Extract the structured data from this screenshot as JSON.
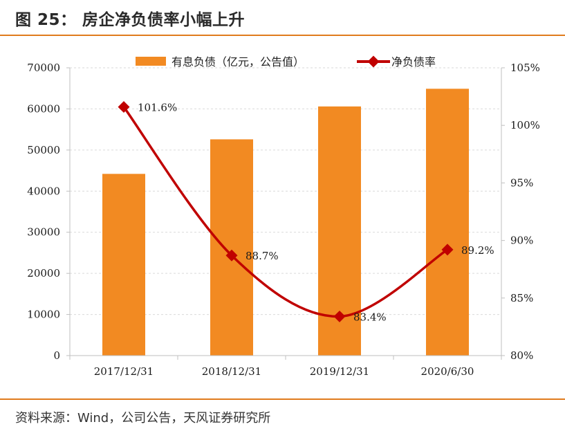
{
  "header": {
    "title": "图 25： 房企净负债率小幅上升"
  },
  "footer": {
    "source": "资料来源：Wind，公司公告，天风证券研究所"
  },
  "colors": {
    "bar": "#f28a22",
    "line": "#c00000",
    "accent_rule": "#e07b1c"
  },
  "chart_data": {
    "type": "bar",
    "categories": [
      "2017/12/31",
      "2018/12/31",
      "2019/12/31",
      "2020/6/30"
    ],
    "series": [
      {
        "name": "有息负债（亿元，公告值）",
        "type": "bar",
        "axis": "left",
        "values": [
          44200,
          52600,
          60600,
          64900
        ]
      },
      {
        "name": "净负债率",
        "type": "line",
        "axis": "right",
        "values": [
          101.6,
          88.7,
          83.4,
          89.2
        ],
        "labels": [
          "101.6%",
          "88.7%",
          "83.4%",
          "89.2%"
        ]
      }
    ],
    "y_left": {
      "ylim": [
        0,
        70000
      ],
      "ticks": [
        "0",
        "10000",
        "20000",
        "30000",
        "40000",
        "50000",
        "60000",
        "70000"
      ]
    },
    "y_right": {
      "ylim": [
        80,
        105
      ],
      "ticks": [
        "80%",
        "85%",
        "90%",
        "95%",
        "100%",
        "105%"
      ]
    },
    "grid": true,
    "legend_position": "top"
  }
}
